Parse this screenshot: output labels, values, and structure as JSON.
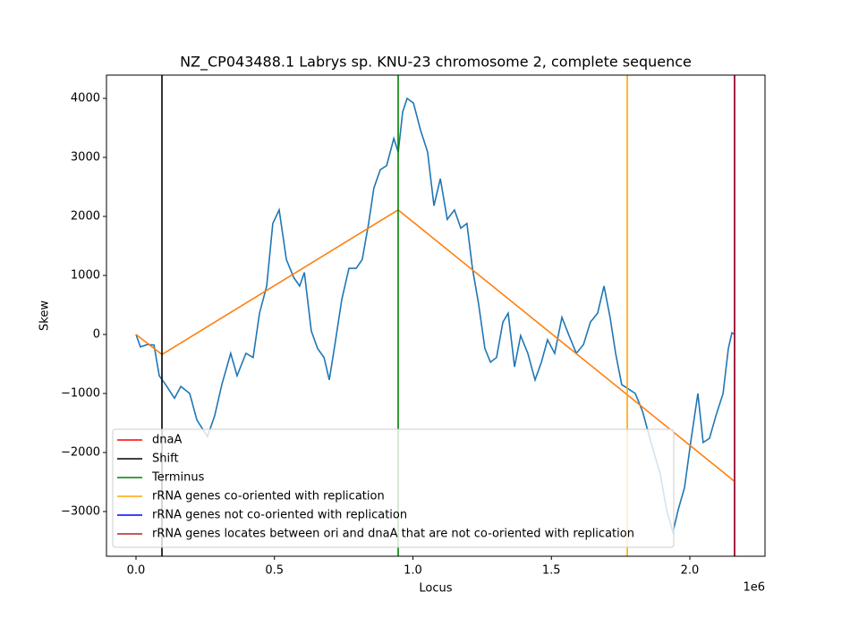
{
  "chart_data": {
    "type": "line",
    "title": "NZ_CP043488.1 Labrys sp. KNU-23 chromosome 2, complete sequence",
    "xlabel": "Locus",
    "ylabel": "Skew",
    "x_offset_label": "1e6",
    "xlim": [
      -106600,
      2271400
    ],
    "ylim": [
      -3758,
      4394
    ],
    "xticks": [
      {
        "value": 0,
        "label": "0.0"
      },
      {
        "value": 500000,
        "label": "0.5"
      },
      {
        "value": 1000000,
        "label": "1.0"
      },
      {
        "value": 1500000,
        "label": "1.5"
      },
      {
        "value": 2000000,
        "label": "2.0"
      }
    ],
    "yticks": [
      {
        "value": -3000,
        "label": "−3000"
      },
      {
        "value": -2000,
        "label": "−2000"
      },
      {
        "value": -1000,
        "label": "−1000"
      },
      0,
      1000,
      2000,
      3000,
      4000
    ],
    "grid": false,
    "legend": "lower left",
    "series": [
      {
        "color": "#1f77b4",
        "x": [
          0,
          16000,
          42000,
          65000,
          84000,
          107000,
          139000,
          162000,
          194000,
          220000,
          258000,
          284000,
          310000,
          342000,
          365000,
          397000,
          423000,
          446000,
          472000,
          494000,
          517000,
          543000,
          569000,
          591000,
          608000,
          633000,
          656000,
          679000,
          698000,
          721000,
          743000,
          769000,
          795000,
          817000,
          840000,
          859000,
          882000,
          905000,
          931000,
          947000,
          963000,
          979000,
          1002000,
          1027000,
          1053000,
          1076000,
          1099000,
          1124000,
          1150000,
          1173000,
          1195000,
          1215000,
          1237000,
          1260000,
          1280000,
          1302000,
          1325000,
          1344000,
          1367000,
          1389000,
          1415000,
          1441000,
          1464000,
          1486000,
          1512000,
          1538000,
          1564000,
          1590000,
          1616000,
          1641000,
          1667000,
          1690000,
          1712000,
          1732000,
          1754000,
          1777000,
          1803000,
          1829000,
          1851000,
          1874000,
          1893000,
          1916000,
          1939000,
          1958000,
          1981000,
          2003000,
          2029000,
          2048000,
          2071000,
          2094000,
          2120000,
          2139000,
          2152000,
          2161600
        ],
        "values": [
          0,
          -210,
          -170,
          -180,
          -700,
          -850,
          -1080,
          -880,
          -1000,
          -1450,
          -1730,
          -1380,
          -850,
          -320,
          -700,
          -320,
          -390,
          360,
          820,
          1880,
          2110,
          1270,
          970,
          820,
          1050,
          60,
          -240,
          -390,
          -770,
          -90,
          590,
          1120,
          1120,
          1270,
          1880,
          2480,
          2790,
          2860,
          3320,
          3090,
          3770,
          4000,
          3920,
          3470,
          3090,
          2180,
          2640,
          1950,
          2110,
          1800,
          1880,
          1120,
          520,
          -240,
          -470,
          -390,
          210,
          360,
          -550,
          -20,
          -320,
          -770,
          -470,
          -90,
          -320,
          290,
          -20,
          -320,
          -170,
          210,
          360,
          820,
          290,
          -320,
          -850,
          -920,
          -1000,
          -1300,
          -1680,
          -2060,
          -2360,
          -2970,
          -3350,
          -2970,
          -2590,
          -1830,
          -1000,
          -1830,
          -1760,
          -1380,
          -1000,
          -240,
          30,
          0
        ]
      },
      {
        "color": "#ff7f0e",
        "x": [
          0,
          93700,
          946700,
          2161600
        ],
        "values": [
          0,
          -340,
          2110,
          -2490
        ]
      }
    ],
    "vlines": [
      {
        "name": "dnaA",
        "color": "#ff0000",
        "x": 2161600
      },
      {
        "name": "Shift",
        "color": "#000000",
        "x": 93700
      },
      {
        "name": "Terminus",
        "color": "#008000",
        "x": 946700
      },
      {
        "name": "rRNA genes co-oriented with replication",
        "color": "#ffa500",
        "x": 1774000
      },
      {
        "name": "rRNA genes not co-oriented with replication",
        "color": "#0000ff",
        "x": 2161600
      },
      {
        "name": "rRNA genes locates between ori and dnaA that are not co-oriented with replication",
        "color": "#b22222",
        "x": 2161600
      }
    ]
  }
}
